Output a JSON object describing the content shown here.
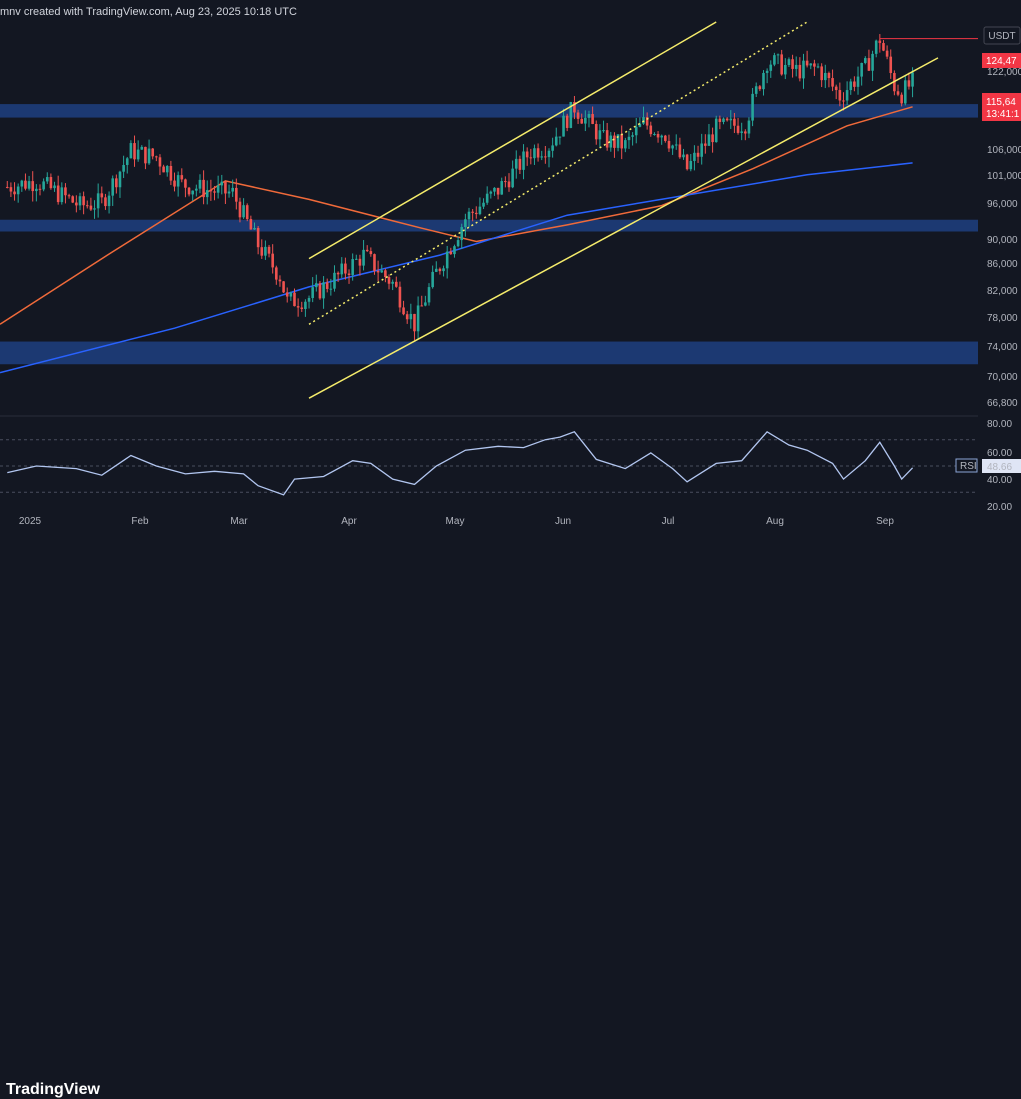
{
  "header": {
    "attribution": "mnv created with TradingView.com, Aug 23, 2025 10:18 UTC"
  },
  "footer": {
    "brand": "TradingView"
  },
  "price_axis": {
    "currency": "USDT",
    "labels": [
      "122,000",
      "106,000",
      "101,000",
      "96,000",
      "90,000",
      "86,000",
      "82,000",
      "78,000",
      "74,000",
      "70,000",
      "66,800"
    ]
  },
  "price_tags": {
    "high": "124,47",
    "last": "115,64",
    "countdown": "13:41:1"
  },
  "rsi": {
    "name": "RSI",
    "value": "48.66",
    "labels": [
      "80.00",
      "60.00",
      "40.00",
      "20.00"
    ]
  },
  "time_axis": {
    "labels": [
      "2025",
      "Feb",
      "Mar",
      "Apr",
      "May",
      "Jun",
      "Jul",
      "Aug",
      "Sep"
    ]
  },
  "colors": {
    "background": "#131722",
    "up": "#26a69a",
    "down": "#ef5350",
    "ema_orange": "#f7525f",
    "ema_blue": "#2962ff",
    "channel": "#f5ec6b",
    "zone": "#1e3f80",
    "rsi_line": "#b2c6f0",
    "price_tag": "#f23645"
  },
  "chart_data": [
    {
      "type": "candlestick",
      "title": "",
      "x_range": [
        "2024-12-15",
        "2025-09-10"
      ],
      "y_range": [
        66000,
        128000
      ],
      "y_scale": "log",
      "series": [
        {
          "name": "price (approx. closes)",
          "points": [
            [
              "2024-12-17",
              97000
            ],
            [
              "2024-12-25",
              98000
            ],
            [
              "2025-01-06",
              94000
            ],
            [
              "2025-01-12",
              94500
            ],
            [
              "2025-01-20",
              103000
            ],
            [
              "2025-01-27",
              102000
            ],
            [
              "2025-02-03",
              97500
            ],
            [
              "2025-02-10",
              96500
            ],
            [
              "2025-02-17",
              96000
            ],
            [
              "2025-02-24",
              88000
            ],
            [
              "2025-03-02",
              83500
            ],
            [
              "2025-03-04",
              80000
            ],
            [
              "2025-03-10",
              80500
            ],
            [
              "2025-03-18",
              83500
            ],
            [
              "2025-03-25",
              86500
            ],
            [
              "2025-04-02",
              82500
            ],
            [
              "2025-04-08",
              77000
            ],
            [
              "2025-04-14",
              84000
            ],
            [
              "2025-04-22",
              92000
            ],
            [
              "2025-05-01",
              96500
            ],
            [
              "2025-05-10",
              103000
            ],
            [
              "2025-05-15",
              104000
            ],
            [
              "2025-05-22",
              111000
            ],
            [
              "2025-05-30",
              105000
            ],
            [
              "2025-06-05",
              104000
            ],
            [
              "2025-06-10",
              108000
            ],
            [
              "2025-06-16",
              106000
            ],
            [
              "2025-06-22",
              100000
            ],
            [
              "2025-06-30",
              107000
            ],
            [
              "2025-07-08",
              108000
            ],
            [
              "2025-07-14",
              120000
            ],
            [
              "2025-07-22",
              118000
            ],
            [
              "2025-07-28",
              118500
            ],
            [
              "2025-08-03",
              113000
            ],
            [
              "2025-08-10",
              118500
            ],
            [
              "2025-08-14",
              124470
            ],
            [
              "2025-08-18",
              115000
            ],
            [
              "2025-08-20",
              113500
            ],
            [
              "2025-08-23",
              115640
            ]
          ]
        },
        {
          "name": "EMA (orange)",
          "points": [
            [
              "2024-12-15",
              77000
            ],
            [
              "2025-01-15",
              87000
            ],
            [
              "2025-02-15",
              98000
            ],
            [
              "2025-03-10",
              95000
            ],
            [
              "2025-04-10",
              90500
            ],
            [
              "2025-04-25",
              88500
            ],
            [
              "2025-05-20",
              91000
            ],
            [
              "2025-06-15",
              94000
            ],
            [
              "2025-07-10",
              100000
            ],
            [
              "2025-08-05",
              107500
            ],
            [
              "2025-08-23",
              111000
            ]
          ]
        },
        {
          "name": "EMA (blue)",
          "points": [
            [
              "2024-12-15",
              71000
            ],
            [
              "2025-02-01",
              76500
            ],
            [
              "2025-03-10",
              82000
            ],
            [
              "2025-04-15",
              86500
            ],
            [
              "2025-05-20",
              92500
            ],
            [
              "2025-06-20",
              95500
            ],
            [
              "2025-07-25",
              99000
            ],
            [
              "2025-08-23",
              101000
            ]
          ]
        }
      ],
      "zones": [
        {
          "from": 109000,
          "to": 111500
        },
        {
          "from": 90000,
          "to": 91800
        },
        {
          "from": 72000,
          "to": 74800
        }
      ],
      "channel": {
        "upper": [
          [
            "2025-03-10",
            86000
          ],
          [
            "2025-06-30",
            128000
          ]
        ],
        "middle": [
          [
            "2025-03-10",
            77000
          ],
          [
            "2025-07-25",
            128000
          ]
        ],
        "lower": [
          [
            "2025-03-10",
            68000
          ],
          [
            "2025-08-30",
            120500
          ]
        ]
      },
      "high_line": {
        "value": 124470,
        "from": "2025-08-14"
      }
    },
    {
      "type": "line",
      "title": "",
      "y_range": [
        15,
        85
      ],
      "levels": [
        70,
        50,
        30
      ],
      "series": [
        {
          "name": "RSI",
          "points": [
            [
              "2024-12-17",
              45
            ],
            [
              "2024-12-25",
              50
            ],
            [
              "2025-01-05",
              48
            ],
            [
              "2025-01-12",
              43
            ],
            [
              "2025-01-20",
              58
            ],
            [
              "2025-01-27",
              50
            ],
            [
              "2025-02-04",
              44
            ],
            [
              "2025-02-12",
              46
            ],
            [
              "2025-02-20",
              44
            ],
            [
              "2025-02-24",
              35
            ],
            [
              "2025-03-03",
              28
            ],
            [
              "2025-03-06",
              40
            ],
            [
              "2025-03-14",
              42
            ],
            [
              "2025-03-22",
              54
            ],
            [
              "2025-03-27",
              52
            ],
            [
              "2025-04-02",
              40
            ],
            [
              "2025-04-08",
              36
            ],
            [
              "2025-04-14",
              50
            ],
            [
              "2025-04-22",
              62
            ],
            [
              "2025-05-01",
              65
            ],
            [
              "2025-05-08",
              64
            ],
            [
              "2025-05-14",
              70
            ],
            [
              "2025-05-18",
              72
            ],
            [
              "2025-05-22",
              76
            ],
            [
              "2025-05-28",
              55
            ],
            [
              "2025-06-05",
              48
            ],
            [
              "2025-06-12",
              60
            ],
            [
              "2025-06-18",
              48
            ],
            [
              "2025-06-22",
              38
            ],
            [
              "2025-06-30",
              52
            ],
            [
              "2025-07-07",
              54
            ],
            [
              "2025-07-14",
              76
            ],
            [
              "2025-07-20",
              66
            ],
            [
              "2025-07-25",
              62
            ],
            [
              "2025-08-01",
              52
            ],
            [
              "2025-08-04",
              40
            ],
            [
              "2025-08-10",
              54
            ],
            [
              "2025-08-14",
              68
            ],
            [
              "2025-08-18",
              50
            ],
            [
              "2025-08-20",
              40
            ],
            [
              "2025-08-23",
              48.66
            ]
          ]
        }
      ]
    }
  ]
}
